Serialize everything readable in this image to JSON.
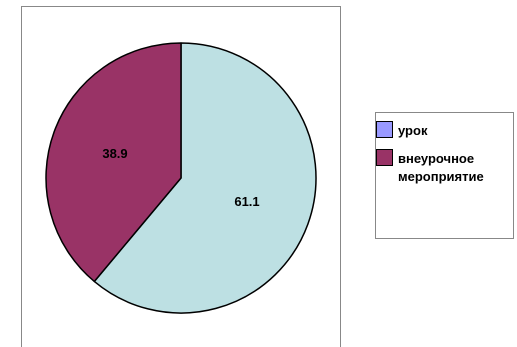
{
  "chart_data": {
    "type": "pie",
    "categories": [
      "урок",
      "внеурочное мероприятие"
    ],
    "values": [
      61.1,
      38.9
    ],
    "data_labels": [
      "61.1",
      "38.9"
    ],
    "colors": [
      "#bde0e3",
      "#993366"
    ],
    "legend_colors": [
      "#9999ff",
      "#993366"
    ],
    "edge_color": "#000000",
    "start_angle_deg": 0,
    "direction": "clockwise",
    "legend": {
      "placement": "right",
      "items": [
        "урок",
        "внеурочное мероприятие"
      ]
    },
    "title": "",
    "xlabel": "",
    "ylabel": ""
  }
}
